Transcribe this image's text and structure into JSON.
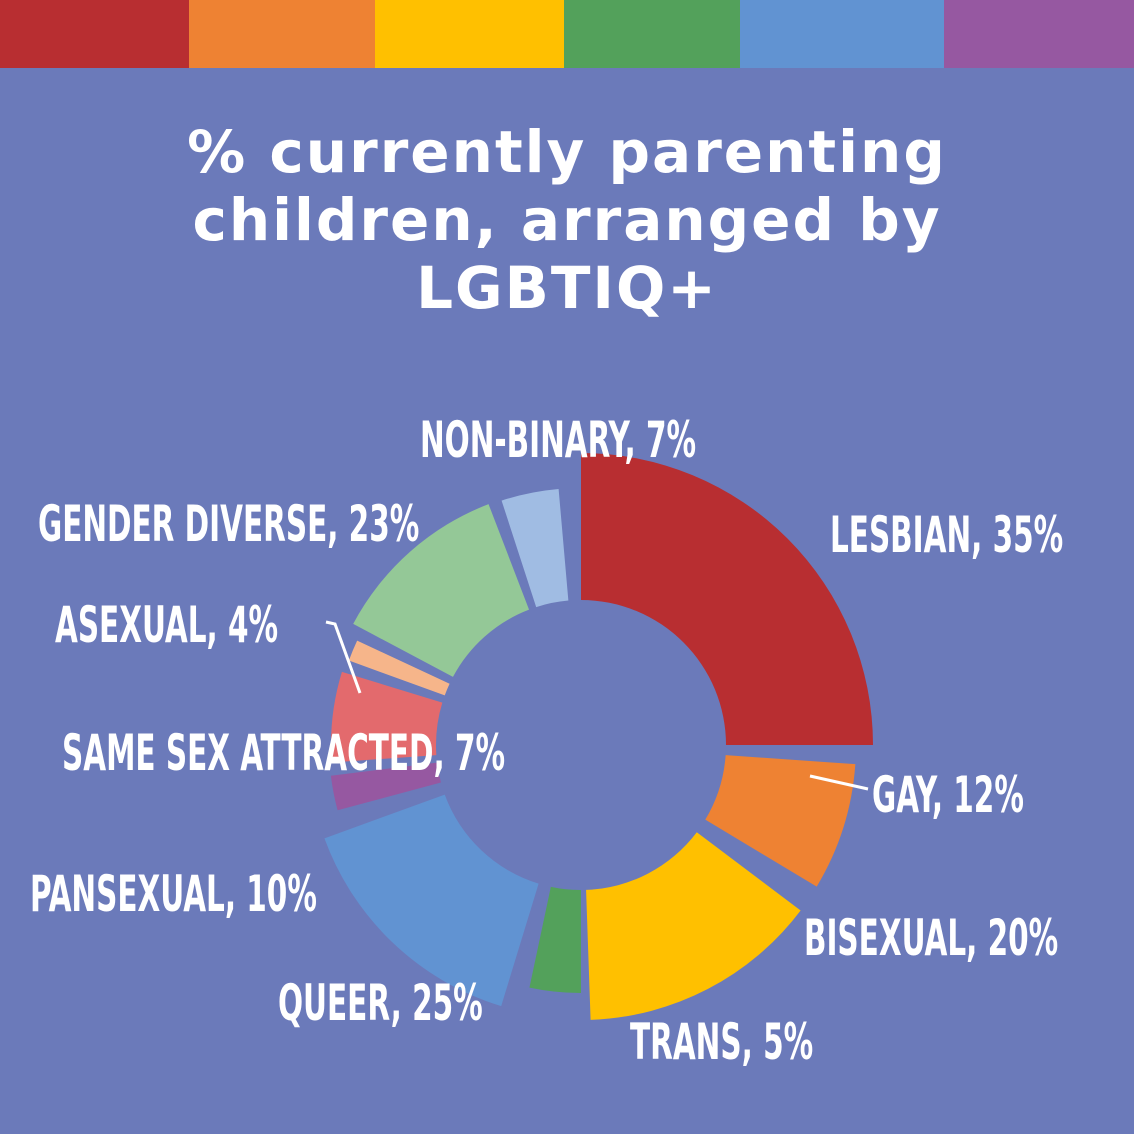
{
  "title_lines": [
    "% currently parenting",
    "children, arranged by",
    "LGBTIQ+"
  ],
  "stripes": [
    "#b82e31",
    "#ee8233",
    "#ffc000",
    "#53a15b",
    "#6193d2",
    "#9658a1"
  ],
  "chart_data": {
    "type": "pie",
    "title": "% currently parenting children, arranged by LGBTIQ+",
    "categories": [
      "LESBIAN",
      "GAY",
      "BISEXUAL",
      "TRANS",
      "QUEER",
      "PANSEXUAL",
      "SAME SEX ATTRACTED",
      "ASEXUAL",
      "GENDER DIVERSE",
      "NON-BINARY"
    ],
    "values": [
      35,
      12,
      20,
      5,
      25,
      10,
      7,
      4,
      23,
      7
    ],
    "labels": [
      "LESBIAN, 35%",
      "GAY, 12%",
      "BISEXUAL, 20%",
      "TRANS, 5%",
      "QUEER, 25%",
      "PANSEXUAL, 10%",
      "SAME SEX ATTRACTED, 7%",
      "ASEXUAL, 4%",
      "GENDER DIVERSE, 23%",
      "NON-BINARY, 7%"
    ],
    "colors": [
      "#b82e31",
      "#ee8233",
      "#ffc000",
      "#53a15b",
      "#6193d2",
      "#9658a1",
      "#e36a6d",
      "#f6b58a",
      "#94c897",
      "#a0bce3"
    ],
    "legend": "none"
  }
}
